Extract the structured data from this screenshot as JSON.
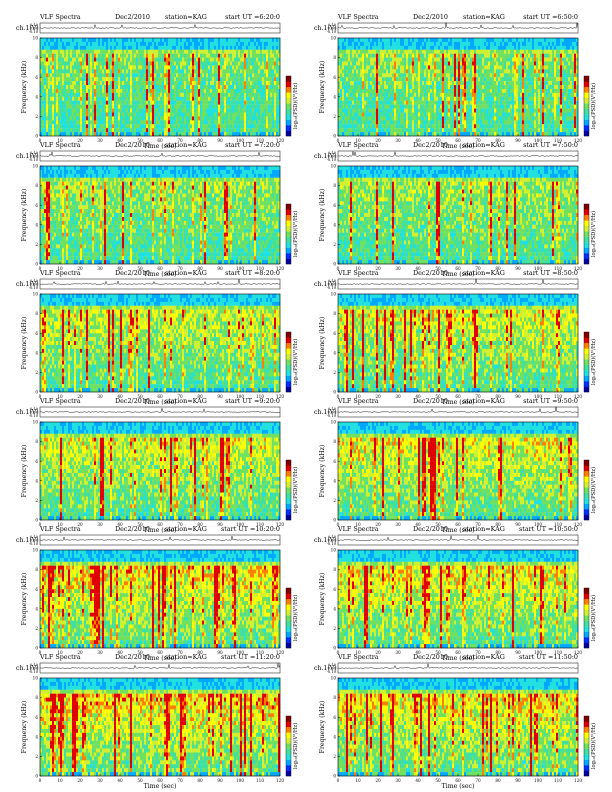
{
  "panel_text": {
    "ch_label": "ch.1(V)",
    "freq_label": "Frequency (kHz)",
    "time_label": "Time (sec)",
    "colorbar_label": "log₁₀(PSD)(V²/Hz)",
    "amp_ticks": [
      "0.10",
      "0.00",
      "-0.10"
    ],
    "freq_ticks": [
      "0",
      "2",
      "4",
      "6",
      "8",
      "10"
    ],
    "time_ticks": [
      "0",
      "10",
      "20",
      "30",
      "40",
      "50",
      "60",
      "70",
      "80",
      "90",
      "100",
      "110",
      "120"
    ]
  },
  "colors": {
    "axis": "#000000",
    "background": "#ffffff",
    "colormap": [
      "#0000a0",
      "#0030ff",
      "#00a8ff",
      "#20e0e0",
      "#40e0a0",
      "#70e060",
      "#d0f030",
      "#ffff00",
      "#ff8000",
      "#e00000",
      "#800000"
    ]
  },
  "chart_data": [
    {
      "type": "heatmap",
      "title_left": "VLF Spectra",
      "date": "Dec2/2010",
      "station": "station=KAG",
      "start": "start UT =6:20:0",
      "xlabel": "Time (sec)",
      "ylabel": "Frequency (kHz)",
      "xlim": [
        0,
        120
      ],
      "ylim": [
        0,
        10
      ],
      "amp_ylim": [
        -0.1,
        0.1
      ],
      "colorbar_label": "log₁₀(PSD)(V²/Hz)",
      "seed": 11,
      "intensity": 0.3
    },
    {
      "type": "heatmap",
      "title_left": "VLF Spectra",
      "date": "Dec2/2010",
      "station": "station=KAG",
      "start": "start UT =6:50:0",
      "xlabel": "Time (sec)",
      "ylabel": "Frequency (kHz)",
      "xlim": [
        0,
        120
      ],
      "ylim": [
        0,
        10
      ],
      "amp_ylim": [
        -0.1,
        0.1
      ],
      "colorbar_label": "log₁₀(PSD)(V²/Hz)",
      "seed": 23,
      "intensity": 0.35
    },
    {
      "type": "heatmap",
      "title_left": "VLF Spectra",
      "date": "Dec2/2010",
      "station": "station=KAG",
      "start": "start UT =7:20:0",
      "xlabel": "Time (sec)",
      "ylabel": "Frequency (kHz)",
      "xlim": [
        0,
        120
      ],
      "ylim": [
        0,
        10
      ],
      "amp_ylim": [
        -0.1,
        0.1
      ],
      "colorbar_label": "log₁₀(PSD)(V²/Hz)",
      "seed": 37,
      "intensity": 0.4
    },
    {
      "type": "heatmap",
      "title_left": "VLF Spectra",
      "date": "Dec2/2010",
      "station": "station=KAG",
      "start": "start UT =7:50:0",
      "xlabel": "Time (sec)",
      "ylabel": "Frequency (kHz)",
      "xlim": [
        0,
        120
      ],
      "ylim": [
        0,
        10
      ],
      "amp_ylim": [
        -0.1,
        0.1
      ],
      "colorbar_label": "log₁₀(PSD)(V²/Hz)",
      "seed": 41,
      "intensity": 0.42
    },
    {
      "type": "heatmap",
      "title_left": "VLF Spectra",
      "date": "Dec2/2010",
      "station": "station=KAG",
      "start": "start UT =8:20:0",
      "xlabel": "Time (sec)",
      "ylabel": "Frequency (kHz)",
      "xlim": [
        0,
        120
      ],
      "ylim": [
        0,
        10
      ],
      "amp_ylim": [
        -0.1,
        0.1
      ],
      "colorbar_label": "log₁₀(PSD)(V²/Hz)",
      "seed": 53,
      "intensity": 0.5
    },
    {
      "type": "heatmap",
      "title_left": "VLF Spectra",
      "date": "Dec2/2010",
      "station": "station=KAG",
      "start": "start UT =8:50:0",
      "xlabel": "Time (sec)",
      "ylabel": "Frequency (kHz)",
      "xlim": [
        0,
        120
      ],
      "ylim": [
        0,
        10
      ],
      "amp_ylim": [
        -0.1,
        0.1
      ],
      "colorbar_label": "log₁₀(PSD)(V²/Hz)",
      "seed": 67,
      "intensity": 0.55
    },
    {
      "type": "heatmap",
      "title_left": "VLF Spectra",
      "date": "Dec2/2010",
      "station": "station=KAG",
      "start": "start UT =9:20:0",
      "xlabel": "Time (sec)",
      "ylabel": "Frequency (kHz)",
      "xlim": [
        0,
        120
      ],
      "ylim": [
        0,
        10
      ],
      "amp_ylim": [
        -0.1,
        0.1
      ],
      "colorbar_label": "log₁₀(PSD)(V²/Hz)",
      "seed": 71,
      "intensity": 0.55
    },
    {
      "type": "heatmap",
      "title_left": "VLF Spectra",
      "date": "Dec2/2010",
      "station": "station=KAG",
      "start": "start UT =9:50:0",
      "xlabel": "Time (sec)",
      "ylabel": "Frequency (kHz)",
      "xlim": [
        0,
        120
      ],
      "ylim": [
        0,
        10
      ],
      "amp_ylim": [
        -0.1,
        0.1
      ],
      "colorbar_label": "log₁₀(PSD)(V²/Hz)",
      "seed": 83,
      "intensity": 0.6
    },
    {
      "type": "heatmap",
      "title_left": "VLF Spectra",
      "date": "Dec2/2010",
      "station": "station=KAG",
      "start": "start UT =10:20:0",
      "xlabel": "Time (sec)",
      "ylabel": "Frequency (kHz)",
      "xlim": [
        0,
        120
      ],
      "ylim": [
        0,
        10
      ],
      "amp_ylim": [
        -0.1,
        0.1
      ],
      "colorbar_label": "log₁₀(PSD)(V²/Hz)",
      "seed": 97,
      "intensity": 0.65
    },
    {
      "type": "heatmap",
      "title_left": "VLF Spectra",
      "date": "Dec2/2010",
      "station": "station=KAG",
      "start": "start UT =10:50:0",
      "xlabel": "Time (sec)",
      "ylabel": "Frequency (kHz)",
      "xlim": [
        0,
        120
      ],
      "ylim": [
        0,
        10
      ],
      "amp_ylim": [
        -0.1,
        0.1
      ],
      "colorbar_label": "log₁₀(PSD)(V²/Hz)",
      "seed": 101,
      "intensity": 0.62
    },
    {
      "type": "heatmap",
      "title_left": "VLF Spectra",
      "date": "Dec2/2010",
      "station": "station=KAG",
      "start": "start UT =11:20:0",
      "xlabel": "Time (sec)",
      "ylabel": "Frequency (kHz)",
      "xlim": [
        0,
        120
      ],
      "ylim": [
        0,
        10
      ],
      "amp_ylim": [
        -0.1,
        0.1
      ],
      "colorbar_label": "log₁₀(PSD)(V²/Hz)",
      "seed": 113,
      "intensity": 0.68
    },
    {
      "type": "heatmap",
      "title_left": "VLF Spectra",
      "date": "Dec2/2010",
      "station": "station=KAG",
      "start": "start UT =11:50:0",
      "xlabel": "Time (sec)",
      "ylabel": "Frequency (kHz)",
      "xlim": [
        0,
        120
      ],
      "ylim": [
        0,
        10
      ],
      "amp_ylim": [
        -0.1,
        0.1
      ],
      "colorbar_label": "log₁₀(PSD)(V²/Hz)",
      "seed": 127,
      "intensity": 0.64
    }
  ]
}
